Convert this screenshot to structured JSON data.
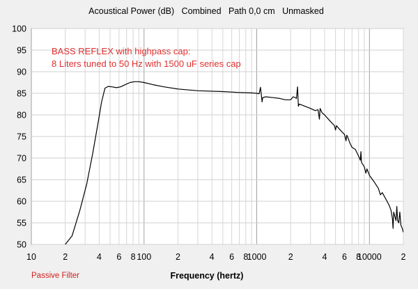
{
  "chart_data": {
    "type": "line",
    "title": "Acoustical Power (dB)   Combined   Path 0,0 cm   Unmasked",
    "xlabel": "Frequency (hertz)",
    "ylabel": "",
    "x_scale": "log",
    "xlim": [
      10,
      20000
    ],
    "ylim": [
      50,
      100
    ],
    "grid": true,
    "y_ticks": [
      50,
      55,
      60,
      65,
      70,
      75,
      80,
      85,
      90,
      95,
      100
    ],
    "x_ticks": [
      {
        "value": 10,
        "label": "10"
      },
      {
        "value": 20,
        "label": "2"
      },
      {
        "value": 40,
        "label": "4"
      },
      {
        "value": 60,
        "label": "6"
      },
      {
        "value": 80,
        "label": "8"
      },
      {
        "value": 100,
        "label": "100"
      },
      {
        "value": 200,
        "label": "2"
      },
      {
        "value": 400,
        "label": "4"
      },
      {
        "value": 600,
        "label": "6"
      },
      {
        "value": 800,
        "label": "8"
      },
      {
        "value": 1000,
        "label": "1000"
      },
      {
        "value": 2000,
        "label": "2"
      },
      {
        "value": 4000,
        "label": "4"
      },
      {
        "value": 6000,
        "label": "6"
      },
      {
        "value": 8000,
        "label": "8"
      },
      {
        "value": 10000,
        "label": "10000"
      },
      {
        "value": 20000,
        "label": "2"
      }
    ],
    "annotations": [
      "BASS REFLEX with highpass cap:",
      "8 Liters tuned to 50 Hz with 1500 uF series cap"
    ],
    "series": [
      {
        "color": "#000000",
        "points": [
          [
            20,
            50
          ],
          [
            23,
            52
          ],
          [
            27,
            58
          ],
          [
            31,
            64
          ],
          [
            35,
            71
          ],
          [
            39,
            78
          ],
          [
            42,
            83
          ],
          [
            45,
            86.2
          ],
          [
            48,
            86.6
          ],
          [
            52,
            86.5
          ],
          [
            57,
            86.3
          ],
          [
            62,
            86.5
          ],
          [
            68,
            87
          ],
          [
            75,
            87.5
          ],
          [
            82,
            87.7
          ],
          [
            90,
            87.7
          ],
          [
            100,
            87.5
          ],
          [
            120,
            87
          ],
          [
            150,
            86.5
          ],
          [
            200,
            86
          ],
          [
            300,
            85.6
          ],
          [
            500,
            85.4
          ],
          [
            700,
            85.2
          ],
          [
            900,
            85.1
          ],
          [
            1000,
            85.0
          ],
          [
            1050,
            84.9
          ],
          [
            1080,
            86.4
          ],
          [
            1100,
            84.5
          ],
          [
            1115,
            83
          ],
          [
            1130,
            84
          ],
          [
            1200,
            84.2
          ],
          [
            1400,
            84.0
          ],
          [
            1600,
            83.8
          ],
          [
            1800,
            83.5
          ],
          [
            2000,
            83.5
          ],
          [
            2100,
            84.2
          ],
          [
            2200,
            84.0
          ],
          [
            2250,
            83.8
          ],
          [
            2300,
            86.5
          ],
          [
            2340,
            82
          ],
          [
            2380,
            82.5
          ],
          [
            2500,
            82.3
          ],
          [
            2800,
            81.8
          ],
          [
            3000,
            81.5
          ],
          [
            3300,
            81
          ],
          [
            3500,
            81.2
          ],
          [
            3600,
            79
          ],
          [
            3650,
            81.5
          ],
          [
            3800,
            80.5
          ],
          [
            4000,
            80
          ],
          [
            4500,
            78.5
          ],
          [
            4900,
            77.5
          ],
          [
            5000,
            76.5
          ],
          [
            5100,
            77.5
          ],
          [
            5500,
            76.5
          ],
          [
            6000,
            75.5
          ],
          [
            6200,
            74
          ],
          [
            6300,
            75.3
          ],
          [
            6500,
            74.5
          ],
          [
            6700,
            73.5
          ],
          [
            7000,
            72.5
          ],
          [
            7500,
            72
          ],
          [
            8000,
            70.5
          ],
          [
            8300,
            69.5
          ],
          [
            8400,
            71.5
          ],
          [
            8500,
            69
          ],
          [
            9000,
            68
          ],
          [
            9300,
            66.5
          ],
          [
            9500,
            67.5
          ],
          [
            10000,
            66
          ],
          [
            11000,
            64.5
          ],
          [
            12000,
            63
          ],
          [
            12500,
            61.5
          ],
          [
            13000,
            62
          ],
          [
            14000,
            60.5
          ],
          [
            15000,
            59
          ],
          [
            15500,
            58
          ],
          [
            16000,
            56
          ],
          [
            16200,
            53.7
          ],
          [
            16400,
            57.5
          ],
          [
            16800,
            56.5
          ],
          [
            17200,
            55.5
          ],
          [
            17500,
            58.8
          ],
          [
            17800,
            55.5
          ],
          [
            18200,
            55
          ],
          [
            18600,
            57.5
          ],
          [
            19000,
            54.5
          ],
          [
            19500,
            53.8
          ],
          [
            20000,
            52.8
          ]
        ]
      }
    ]
  },
  "footer": {
    "left_label": "Passive Filter"
  }
}
